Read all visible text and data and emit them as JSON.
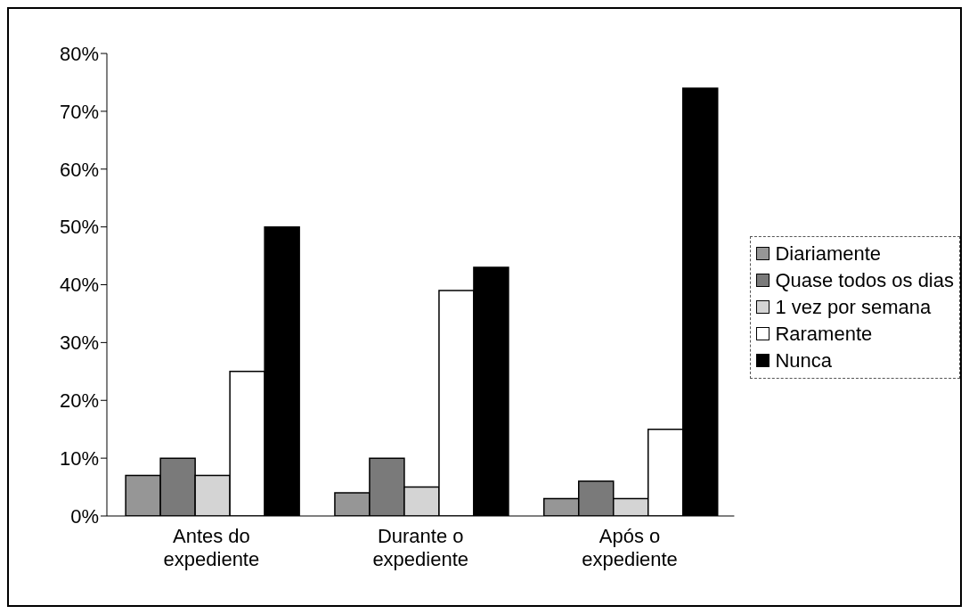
{
  "chart_data": {
    "type": "bar",
    "categories": [
      "Antes do expediente",
      "Durante o expediente",
      "Após o expediente"
    ],
    "series": [
      {
        "name": "Diariamente",
        "color": "#969696",
        "values": [
          7,
          4,
          3
        ]
      },
      {
        "name": "Quase todos os dias",
        "color": "#7a7a7a",
        "values": [
          10,
          10,
          6
        ]
      },
      {
        "name": "1 vez por semana",
        "color": "#d4d4d4",
        "values": [
          7,
          5,
          3
        ]
      },
      {
        "name": "Raramente",
        "color": "#ffffff",
        "values": [
          25,
          39,
          15
        ]
      },
      {
        "name": "Nunca",
        "color": "#000000",
        "values": [
          50,
          43,
          74
        ]
      }
    ],
    "ylim": [
      0,
      80
    ],
    "yticks": [
      {
        "value": 0,
        "label": "0%"
      },
      {
        "value": 10,
        "label": "10%"
      },
      {
        "value": 20,
        "label": "20%"
      },
      {
        "value": 30,
        "label": "30%"
      },
      {
        "value": 40,
        "label": "40%"
      },
      {
        "value": 50,
        "label": "50%"
      },
      {
        "value": 60,
        "label": "60%"
      },
      {
        "value": 70,
        "label": "70%"
      },
      {
        "value": 80,
        "label": "80%"
      }
    ],
    "grid": false,
    "legend": "right"
  }
}
